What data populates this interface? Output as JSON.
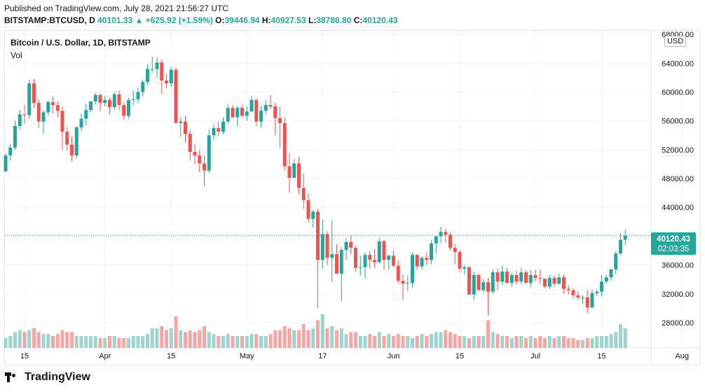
{
  "header": {
    "published": "Published on TradingView.com, July 28, 2021 21:56:27 UTC",
    "symbol": "BITSTAMP:BTCUSD, D",
    "last": "40101.33",
    "change": "▲ +625.92 (+1.59%)",
    "o_label": "O:",
    "o": "39446.94",
    "h_label": "H:",
    "h": "40927.53",
    "l_label": "L:",
    "l": "38786.80",
    "c_label": "C:",
    "c": "40120.43"
  },
  "legend": {
    "title": "Bitcoin / U.S. Dollar, 1D, BITSTAMP",
    "volume": "Vol"
  },
  "currency": "USD",
  "price_tag": {
    "price": "40120.43",
    "countdown": "02:03:35"
  },
  "footer": {
    "brand": "TradingView"
  },
  "colors": {
    "up": "#26a69a",
    "down": "#ef5350",
    "up_vol": "#9ed3ce",
    "down_vol": "#f5a6a4",
    "grid": "#f0f3fa",
    "axis_text": "#131722",
    "dotted": "#26a69a"
  },
  "chart_data": {
    "type": "candlestick",
    "title": "Bitcoin / U.S. Dollar, 1D, BITSTAMP",
    "ylim": [
      24500,
      68500
    ],
    "y_ticks": [
      28000,
      32000,
      36000,
      40000,
      44000,
      48000,
      52000,
      56000,
      60000,
      64000,
      68000
    ],
    "y_tick_labels": [
      "28000.00",
      "32000.00",
      "36000.00",
      "40000.00",
      "44000.00",
      "48000.00",
      "52000.00",
      "56000.00",
      "60000.00",
      "64000.00",
      "68000.00"
    ],
    "x_tick_labels": [
      {
        "day": 4,
        "label": "15"
      },
      {
        "day": 21,
        "label": "Apr"
      },
      {
        "day": 35,
        "label": "15"
      },
      {
        "day": 51,
        "label": "May"
      },
      {
        "day": 67,
        "label": "17"
      },
      {
        "day": 82,
        "label": "Jun"
      },
      {
        "day": 96,
        "label": "15"
      },
      {
        "day": 112,
        "label": "Jul"
      },
      {
        "day": 126,
        "label": "15"
      },
      {
        "day": 143,
        "label": "Aug"
      }
    ],
    "current_price": 40120.43,
    "ohlc": [
      [
        49000,
        51500,
        48900,
        51200
      ],
      [
        51200,
        52800,
        50500,
        52300
      ],
      [
        52300,
        56000,
        52000,
        55300
      ],
      [
        55300,
        57500,
        54800,
        56900
      ],
      [
        56900,
        58200,
        55600,
        56800
      ],
      [
        56800,
        61700,
        56300,
        61200
      ],
      [
        61200,
        61800,
        57800,
        58500
      ],
      [
        58500,
        59000,
        55000,
        55900
      ],
      [
        55900,
        57500,
        54200,
        57200
      ],
      [
        57200,
        58800,
        56700,
        58600
      ],
      [
        58600,
        59400,
        57000,
        58200
      ],
      [
        58200,
        58700,
        56500,
        57400
      ],
      [
        57400,
        58000,
        52000,
        54500
      ],
      [
        54500,
        55200,
        51900,
        52700
      ],
      [
        52700,
        53800,
        50400,
        51200
      ],
      [
        51200,
        55300,
        50700,
        55100
      ],
      [
        55100,
        57000,
        54600,
        56300
      ],
      [
        56300,
        58300,
        55400,
        57500
      ],
      [
        57500,
        58800,
        57200,
        58700
      ],
      [
        58700,
        59900,
        58300,
        59600
      ],
      [
        59600,
        59800,
        57300,
        58500
      ],
      [
        58500,
        59500,
        58000,
        58900
      ],
      [
        58900,
        59200,
        56900,
        57900
      ],
      [
        57900,
        60000,
        57500,
        59700
      ],
      [
        59700,
        60200,
        57500,
        58200
      ],
      [
        58200,
        58500,
        56200,
        56700
      ],
      [
        56700,
        59200,
        56300,
        58900
      ],
      [
        58900,
        60200,
        58200,
        59000
      ],
      [
        59000,
        60600,
        58500,
        60000
      ],
      [
        60000,
        61700,
        59400,
        61400
      ],
      [
        61400,
        63800,
        61000,
        63200
      ],
      [
        63200,
        64900,
        62700,
        63200
      ],
      [
        63200,
        64800,
        62000,
        64100
      ],
      [
        64100,
        64500,
        59800,
        61600
      ],
      [
        61600,
        62500,
        60500,
        61200
      ],
      [
        61200,
        63500,
        60700,
        63100
      ],
      [
        63100,
        63400,
        55800,
        55700
      ],
      [
        55700,
        56500,
        53800,
        55900
      ],
      [
        55900,
        56700,
        53000,
        54200
      ],
      [
        54200,
        54700,
        50500,
        51700
      ],
      [
        51700,
        52800,
        50000,
        51200
      ],
      [
        51200,
        52000,
        48900,
        50100
      ],
      [
        50100,
        51200,
        47000,
        49100
      ],
      [
        49100,
        54800,
        48800,
        54000
      ],
      [
        54000,
        55500,
        53300,
        55000
      ],
      [
        55000,
        55900,
        53900,
        54500
      ],
      [
        54500,
        56500,
        54100,
        55900
      ],
      [
        55900,
        58300,
        55600,
        57800
      ],
      [
        57800,
        58200,
        56400,
        56500
      ],
      [
        56500,
        58100,
        55300,
        57800
      ],
      [
        57800,
        58300,
        56500,
        56700
      ],
      [
        56700,
        58000,
        56000,
        57300
      ],
      [
        57300,
        59400,
        57200,
        58900
      ],
      [
        58900,
        59100,
        55300,
        55900
      ],
      [
        55900,
        58100,
        55100,
        57400
      ],
      [
        57400,
        58900,
        56800,
        58200
      ],
      [
        58200,
        59600,
        57600,
        58000
      ],
      [
        58000,
        58500,
        54000,
        56400
      ],
      [
        56400,
        58000,
        52300,
        55700
      ],
      [
        55700,
        56500,
        49100,
        49700
      ],
      [
        49700,
        51500,
        46000,
        48100
      ],
      [
        48100,
        50700,
        48200,
        50100
      ],
      [
        50100,
        51000,
        45800,
        46700
      ],
      [
        46700,
        48700,
        43800,
        45000
      ],
      [
        45000,
        46000,
        41900,
        42400
      ],
      [
        42400,
        43600,
        41200,
        43400
      ],
      [
        43400,
        43800,
        30000,
        36700
      ],
      [
        36700,
        42300,
        35500,
        40300
      ],
      [
        40300,
        40700,
        36000,
        37000
      ],
      [
        37000,
        42200,
        33700,
        37500
      ],
      [
        37500,
        38900,
        34800,
        34800
      ],
      [
        34800,
        38500,
        31000,
        38100
      ],
      [
        38100,
        39700,
        36700,
        39200
      ],
      [
        39200,
        40100,
        37500,
        38400
      ],
      [
        38400,
        38700,
        35100,
        35600
      ],
      [
        35600,
        37300,
        34500,
        35700
      ],
      [
        35700,
        37800,
        34100,
        37400
      ],
      [
        37400,
        37900,
        35500,
        36700
      ],
      [
        36700,
        38200,
        35600,
        36400
      ],
      [
        36400,
        39800,
        36200,
        39300
      ],
      [
        39300,
        39500,
        35300,
        36700
      ],
      [
        36700,
        37400,
        35400,
        37300
      ],
      [
        37300,
        38000,
        35700,
        35900
      ],
      [
        35900,
        36700,
        33400,
        33800
      ],
      [
        33800,
        34700,
        31100,
        33400
      ],
      [
        33400,
        34500,
        32400,
        33500
      ],
      [
        33500,
        37700,
        32900,
        37400
      ],
      [
        37400,
        37500,
        35300,
        35800
      ],
      [
        35800,
        37200,
        35400,
        37000
      ],
      [
        37000,
        37700,
        36000,
        36700
      ],
      [
        36700,
        39500,
        36100,
        39000
      ],
      [
        39000,
        40000,
        37600,
        40000
      ],
      [
        40000,
        41300,
        39000,
        40600
      ],
      [
        40600,
        41000,
        39100,
        40200
      ],
      [
        40200,
        40500,
        38000,
        38400
      ],
      [
        38400,
        38900,
        36100,
        37800
      ],
      [
        37800,
        38100,
        35000,
        35500
      ],
      [
        35500,
        36000,
        34700,
        35700
      ],
      [
        35700,
        35800,
        31900,
        31900
      ],
      [
        31900,
        35000,
        31200,
        34600
      ],
      [
        34600,
        34800,
        32800,
        32500
      ],
      [
        32500,
        34100,
        32200,
        33600
      ],
      [
        33600,
        34200,
        29000,
        32300
      ],
      [
        32300,
        35400,
        32000,
        35000
      ],
      [
        35000,
        35500,
        32500,
        33700
      ],
      [
        33700,
        35900,
        33200,
        35100
      ],
      [
        35100,
        35600,
        33500,
        33500
      ],
      [
        33500,
        34900,
        33000,
        34600
      ],
      [
        34600,
        35200,
        33300,
        33700
      ],
      [
        33700,
        35600,
        33300,
        35000
      ],
      [
        35000,
        35200,
        33700,
        33500
      ],
      [
        33500,
        35300,
        32900,
        34600
      ],
      [
        34600,
        35300,
        33700,
        34200
      ],
      [
        34200,
        35300,
        33400,
        34100
      ],
      [
        34100,
        34100,
        32800,
        33000
      ],
      [
        33000,
        34600,
        32700,
        34200
      ],
      [
        34200,
        34500,
        33000,
        33400
      ],
      [
        33400,
        34800,
        33300,
        34300
      ],
      [
        34300,
        34700,
        32000,
        32700
      ],
      [
        32700,
        33200,
        31900,
        32500
      ],
      [
        32500,
        32800,
        31300,
        31800
      ],
      [
        31800,
        32300,
        31200,
        31500
      ],
      [
        31500,
        31800,
        30600,
        31500
      ],
      [
        31500,
        32500,
        29300,
        30100
      ],
      [
        30100,
        32600,
        30000,
        32100
      ],
      [
        32100,
        32700,
        31700,
        32300
      ],
      [
        32300,
        34500,
        31700,
        33700
      ],
      [
        33700,
        34600,
        33400,
        34300
      ],
      [
        34300,
        35500,
        33800,
        35400
      ],
      [
        35400,
        37900,
        34800,
        37600
      ],
      [
        37600,
        40400,
        37400,
        39500
      ],
      [
        39500,
        40900,
        38800,
        40100
      ]
    ],
    "volume_index": [
      5,
      6,
      8,
      9,
      8,
      9,
      10,
      8,
      7,
      7,
      6,
      7,
      9,
      8,
      8,
      6,
      6,
      6,
      6,
      6,
      5,
      5,
      6,
      6,
      5,
      5,
      5,
      6,
      6,
      6,
      7,
      10,
      10,
      11,
      9,
      10,
      16,
      9,
      8,
      9,
      8,
      9,
      11,
      8,
      7,
      6,
      6,
      7,
      6,
      6,
      6,
      6,
      7,
      7,
      6,
      6,
      7,
      9,
      9,
      11,
      10,
      9,
      9,
      12,
      9,
      10,
      14,
      17,
      10,
      11,
      9,
      10,
      7,
      8,
      8,
      6,
      6,
      7,
      6,
      8,
      6,
      7,
      6,
      7,
      6,
      6,
      5,
      6,
      7,
      6,
      7,
      8,
      8,
      9,
      8,
      7,
      6,
      6,
      5,
      6,
      6,
      6,
      14,
      8,
      7,
      6,
      6,
      5,
      6,
      6,
      5,
      6,
      5,
      6,
      5,
      6,
      5,
      6,
      6,
      5,
      5,
      4,
      4,
      5,
      5,
      6,
      6,
      6,
      7,
      8,
      12,
      10
    ]
  }
}
